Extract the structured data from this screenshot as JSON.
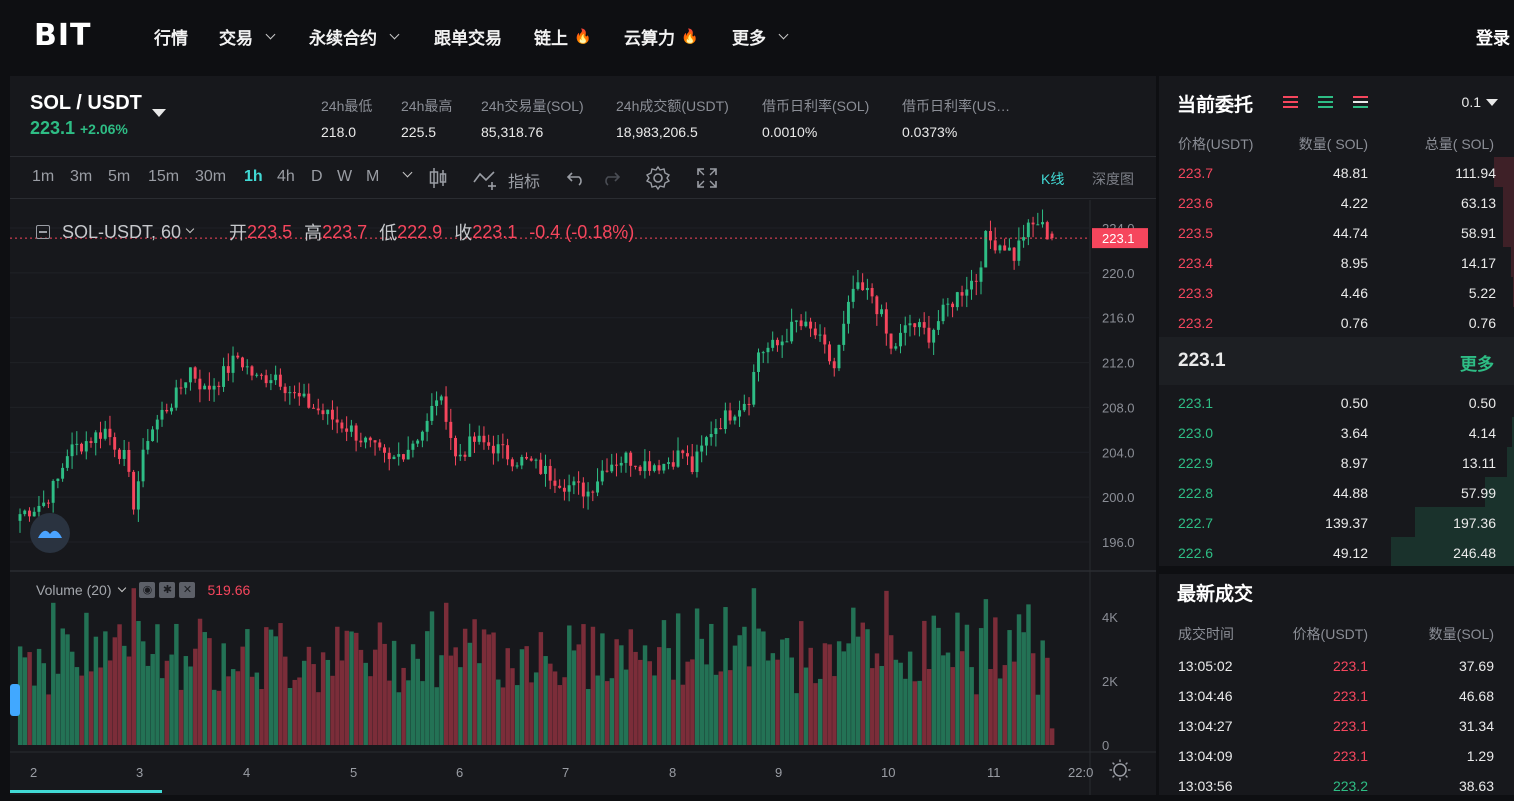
{
  "nav": {
    "logo": "BIT",
    "items": [
      {
        "label": "行情",
        "caret": false,
        "fire": false
      },
      {
        "label": "交易",
        "caret": true,
        "fire": false
      },
      {
        "label": "永续合约",
        "caret": true,
        "fire": false
      },
      {
        "label": "跟单交易",
        "caret": false,
        "fire": false
      },
      {
        "label": "链上",
        "caret": false,
        "fire": true
      },
      {
        "label": "云算力",
        "caret": false,
        "fire": true
      },
      {
        "label": "更多",
        "caret": true,
        "fire": false
      }
    ],
    "login": "登录"
  },
  "ticker": {
    "pair": "SOL / USDT",
    "price": "223.1",
    "change": "+2.06%",
    "stats": [
      {
        "label": "24h最低",
        "value": "218.0"
      },
      {
        "label": "24h最高",
        "value": "225.5"
      },
      {
        "label": "24h交易量(SOL)",
        "value": "85,318.76"
      },
      {
        "label": "24h成交额(USDT)",
        "value": "18,983,206.5"
      },
      {
        "label": "借币日利率(SOL)",
        "value": "0.0010%"
      },
      {
        "label": "借币日利率(US…",
        "value": "0.0373%"
      }
    ]
  },
  "toolbar": {
    "timeframes": [
      "1m",
      "3m",
      "5m",
      "15m",
      "30m",
      "1h",
      "4h",
      "D",
      "W",
      "M"
    ],
    "active_timeframe": "1h",
    "indicator_label": "指标",
    "kline_tab": "K线",
    "depth_tab": "深度图"
  },
  "legend": {
    "symbol": "SOL-USDT, 60",
    "open_label": "开",
    "open": "223.5",
    "high_label": "高",
    "high": "223.7",
    "low_label": "低",
    "low": "222.9",
    "close_label": "收",
    "close": "223.1",
    "change": "-0.4 (-0.18%)",
    "volume_label": "Volume (20)",
    "volume_value": "519.66"
  },
  "chart_data": {
    "type": "candlestick",
    "symbol": "SOL-USDT",
    "interval": "60",
    "price_axis": {
      "ticks": [
        "224.0",
        "220.0",
        "216.0",
        "212.0",
        "208.0",
        "204.0",
        "200.0",
        "196.0"
      ],
      "ylim": [
        193.5,
        226.5
      ],
      "last_price": "223.1"
    },
    "volume_axis": {
      "ticks": [
        "4K",
        "2K",
        "0"
      ],
      "ylim": [
        0,
        5000
      ]
    },
    "x_ticks": [
      "2",
      "3",
      "4",
      "5",
      "6",
      "7",
      "8",
      "9",
      "10",
      "11",
      "22:0"
    ],
    "close_anchors": [
      [
        0,
        198.5
      ],
      [
        5,
        199.5
      ],
      [
        8,
        201.5
      ],
      [
        10,
        204.0
      ],
      [
        14,
        205.0
      ],
      [
        18,
        206.0
      ],
      [
        22,
        203.5
      ],
      [
        24,
        199.5
      ],
      [
        27,
        205.5
      ],
      [
        30,
        207.5
      ],
      [
        33,
        209.0
      ],
      [
        36,
        211.5
      ],
      [
        39,
        209.5
      ],
      [
        42,
        210.5
      ],
      [
        46,
        212.5
      ],
      [
        50,
        210.5
      ],
      [
        54,
        211.0
      ],
      [
        58,
        209.0
      ],
      [
        62,
        208.0
      ],
      [
        66,
        207.0
      ],
      [
        70,
        206.0
      ],
      [
        74,
        204.5
      ],
      [
        78,
        203.0
      ],
      [
        82,
        204.5
      ],
      [
        86,
        206.5
      ],
      [
        88,
        209.0
      ],
      [
        90,
        207.5
      ],
      [
        92,
        203.5
      ],
      [
        96,
        205.0
      ],
      [
        100,
        204.5
      ],
      [
        104,
        203.5
      ],
      [
        108,
        203.0
      ],
      [
        112,
        202.0
      ],
      [
        116,
        201.0
      ],
      [
        120,
        200.5
      ],
      [
        124,
        203.0
      ],
      [
        128,
        203.5
      ],
      [
        132,
        203.0
      ],
      [
        136,
        203.0
      ],
      [
        140,
        204.0
      ],
      [
        142,
        202.5
      ],
      [
        146,
        206.0
      ],
      [
        150,
        207.5
      ],
      [
        154,
        209.0
      ],
      [
        156,
        213.0
      ],
      [
        160,
        213.5
      ],
      [
        164,
        215.5
      ],
      [
        168,
        214.5
      ],
      [
        170,
        213.0
      ],
      [
        172,
        211.5
      ],
      [
        174,
        215.0
      ],
      [
        176,
        218.5
      ],
      [
        180,
        218.0
      ],
      [
        182,
        216.0
      ],
      [
        184,
        213.0
      ],
      [
        188,
        215.5
      ],
      [
        192,
        214.5
      ],
      [
        196,
        217.0
      ],
      [
        200,
        219.0
      ],
      [
        202,
        219.5
      ],
      [
        204,
        223.0
      ],
      [
        208,
        222.5
      ],
      [
        210,
        221.5
      ],
      [
        212,
        223.5
      ],
      [
        215,
        224.5
      ],
      [
        218,
        223.0
      ]
    ],
    "last_candle": {
      "open": 223.5,
      "high": 223.7,
      "low": 222.9,
      "close": 223.1
    },
    "volume_last": 519.66
  },
  "orderbook": {
    "title": "当前委托",
    "precision": "0.1",
    "headers": [
      "价格(USDT)",
      "数量( SOL)",
      "总量( SOL)"
    ],
    "asks": [
      {
        "price": "223.7",
        "qty": "48.81",
        "total": "111.94"
      },
      {
        "price": "223.6",
        "qty": "4.22",
        "total": "63.13"
      },
      {
        "price": "223.5",
        "qty": "44.74",
        "total": "58.91"
      },
      {
        "price": "223.4",
        "qty": "8.95",
        "total": "14.17"
      },
      {
        "price": "223.3",
        "qty": "4.46",
        "total": "5.22"
      },
      {
        "price": "223.2",
        "qty": "0.76",
        "total": "0.76"
      }
    ],
    "mid_price": "223.1",
    "more": "更多",
    "bids": [
      {
        "price": "223.1",
        "qty": "0.50",
        "total": "0.50"
      },
      {
        "price": "223.0",
        "qty": "3.64",
        "total": "4.14"
      },
      {
        "price": "222.9",
        "qty": "8.97",
        "total": "13.11"
      },
      {
        "price": "222.8",
        "qty": "44.88",
        "total": "57.99"
      },
      {
        "price": "222.7",
        "qty": "139.37",
        "total": "197.36"
      },
      {
        "price": "222.6",
        "qty": "49.12",
        "total": "246.48"
      }
    ]
  },
  "trades": {
    "title": "最新成交",
    "headers": [
      "成交时间",
      "价格(USDT)",
      "数量(SOL)"
    ],
    "rows": [
      {
        "time": "13:05:02",
        "price": "223.1",
        "qty": "37.69",
        "side": "sell"
      },
      {
        "time": "13:04:46",
        "price": "223.1",
        "qty": "46.68",
        "side": "sell"
      },
      {
        "time": "13:04:27",
        "price": "223.1",
        "qty": "31.34",
        "side": "sell"
      },
      {
        "time": "13:04:09",
        "price": "223.1",
        "qty": "1.29",
        "side": "sell"
      },
      {
        "time": "13:03:56",
        "price": "223.2",
        "qty": "38.63",
        "side": "buy"
      }
    ]
  },
  "colors": {
    "up": "#2ebd85",
    "down": "#f6465d",
    "accent": "#41d9d4",
    "panel": "#17181c",
    "bg": "#0e0f12"
  }
}
